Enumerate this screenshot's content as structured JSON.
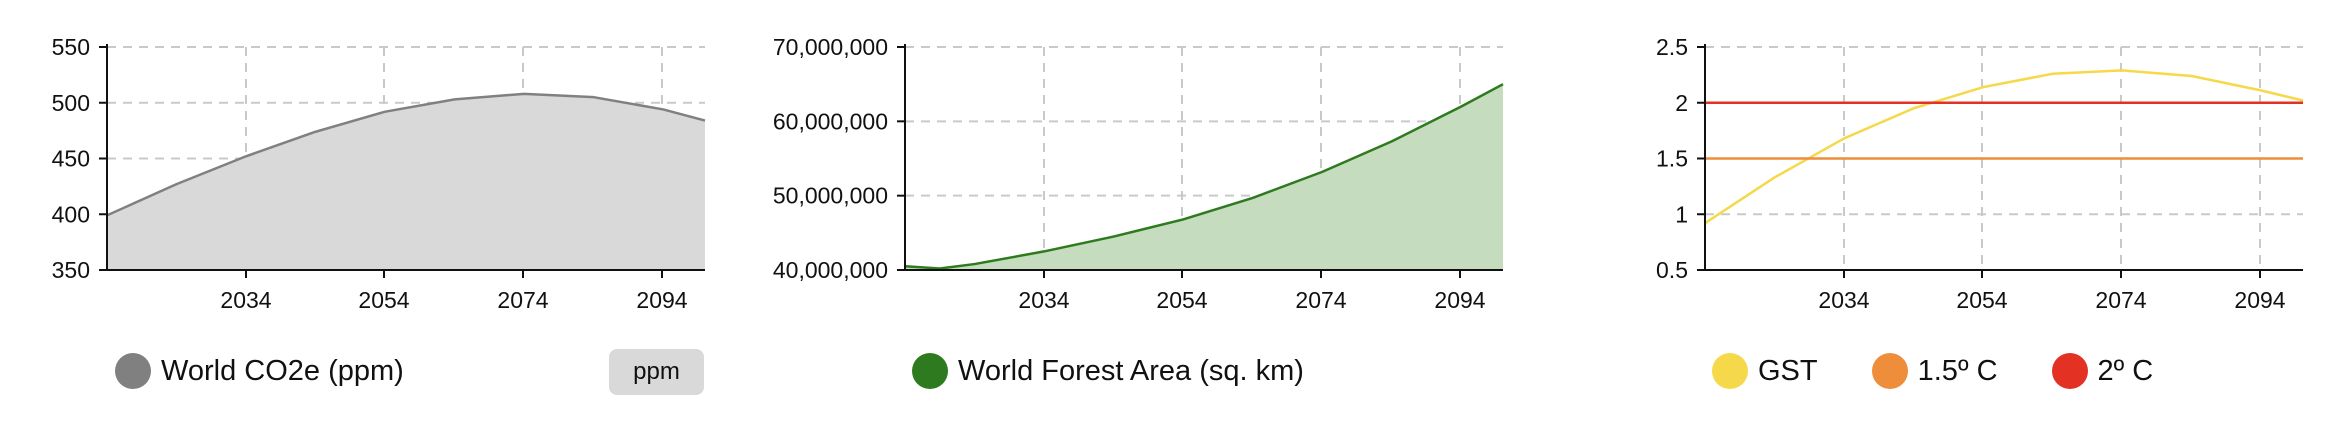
{
  "chart_data": [
    {
      "type": "area",
      "x_ticks": [
        "2034",
        "2054",
        "2074",
        "2094"
      ],
      "x_range": [
        2014,
        2100
      ],
      "ylim": [
        350,
        550
      ],
      "y_ticks": [
        "550",
        "500",
        "450",
        "400",
        "350"
      ],
      "y_tick_values": [
        550,
        500,
        450,
        400,
        350
      ],
      "grid": true,
      "series": [
        {
          "name": "World CO2e (ppm)",
          "color": "#808080",
          "fill": "#d9d9d9",
          "x": [
            2014,
            2024,
            2034,
            2044,
            2054,
            2064,
            2074,
            2084,
            2094,
            2100
          ],
          "y": [
            399,
            427,
            452,
            474,
            492,
            503,
            508,
            505,
            494,
            484
          ]
        }
      ]
    },
    {
      "type": "area",
      "x_ticks": [
        "2034",
        "2054",
        "2074",
        "2094"
      ],
      "x_range": [
        2014,
        2100
      ],
      "ylim": [
        40000000,
        70000000
      ],
      "y_ticks": [
        "70,000,000",
        "60,000,000",
        "50,000,000",
        "40,000,000"
      ],
      "y_tick_values": [
        70000000,
        60000000,
        50000000,
        40000000
      ],
      "grid": true,
      "series": [
        {
          "name": "World Forest Area (sq. km)",
          "color": "#2e7a1e",
          "fill": "#c6dcbf",
          "x": [
            2014,
            2019,
            2024,
            2034,
            2044,
            2054,
            2064,
            2074,
            2084,
            2094,
            2100
          ],
          "y": [
            40500000,
            40200000,
            40800000,
            42500000,
            44500000,
            46800000,
            49700000,
            53200000,
            57300000,
            62000000,
            65000000
          ]
        }
      ]
    },
    {
      "type": "line",
      "x_ticks": [
        "2034",
        "2054",
        "2074",
        "2094"
      ],
      "x_range": [
        2014,
        2100
      ],
      "ylim": [
        0.5,
        2.5
      ],
      "y_ticks": [
        "2.5",
        "2",
        "1.5",
        "1",
        "0.5"
      ],
      "y_tick_values": [
        2.5,
        2,
        1.5,
        1,
        0.5
      ],
      "grid": true,
      "series": [
        {
          "name": "GST",
          "color": "#f5d94a",
          "x": [
            2014,
            2024,
            2034,
            2044,
            2054,
            2064,
            2074,
            2084,
            2094,
            2100
          ],
          "y": [
            0.92,
            1.33,
            1.68,
            1.95,
            2.14,
            2.26,
            2.29,
            2.24,
            2.11,
            2.02
          ]
        },
        {
          "name": "1.5º C",
          "color": "#ee8e3b",
          "x": [
            2014,
            2100
          ],
          "y": [
            1.5,
            1.5
          ]
        },
        {
          "name": "2º C",
          "color": "#e33223",
          "x": [
            2014,
            2100
          ],
          "y": [
            2,
            2
          ]
        }
      ]
    }
  ],
  "legends": {
    "co2": {
      "label": "World CO2e (ppm)",
      "color": "#808080"
    },
    "forest": {
      "label": "World Forest Area (sq. km)",
      "color": "#2e7a1e"
    },
    "gst": {
      "label": "GST",
      "color": "#f5d94a"
    },
    "c15": {
      "label": "1.5º C",
      "color": "#ee8e3b"
    },
    "c2": {
      "label": "2º C",
      "color": "#e33223"
    }
  },
  "unit_button": {
    "label": "ppm"
  }
}
